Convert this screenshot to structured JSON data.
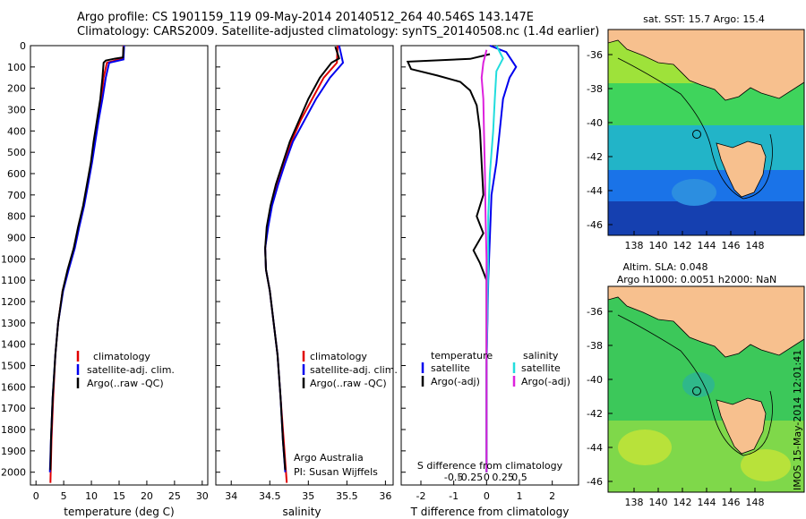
{
  "header": {
    "line1": "Argo profile: CS 1901159_119 09-May-2014 20140512_264 40.546S 143.147E",
    "line2": "Climatology: CARS2009. Satellite-adjusted climatology: synTS_20140508.nc (1.4d earlier)"
  },
  "colors": {
    "climatology": "#e00000",
    "satellite": "#0000ee",
    "argo": "#000000",
    "sat_salinity": "#22dddd",
    "argo_salinity": "#dd22dd",
    "land": "#f7c08e"
  },
  "depth_axis": {
    "ticks": [
      0,
      100,
      200,
      300,
      400,
      500,
      600,
      700,
      800,
      900,
      1000,
      1100,
      1200,
      1300,
      1400,
      1500,
      1600,
      1700,
      1800,
      1900,
      2000
    ]
  },
  "chart_data": [
    {
      "type": "line",
      "id": "temperature",
      "xlabel": "temperature (deg C)",
      "xlim": [
        -1,
        31
      ],
      "ylim": [
        2060,
        0
      ],
      "xticks": [
        0,
        5,
        10,
        15,
        20,
        25,
        30
      ],
      "legend": [
        "climatology",
        "satellite-adj. clim.",
        "Argo(..raw -QC)"
      ],
      "series": [
        {
          "name": "climatology",
          "color": "#e00000",
          "points": [
            [
              15.8,
              0
            ],
            [
              15.7,
              60
            ],
            [
              12.8,
              80
            ],
            [
              12.2,
              150
            ],
            [
              11.8,
              250
            ],
            [
              11.2,
              350
            ],
            [
              10.6,
              450
            ],
            [
              10.0,
              550
            ],
            [
              9.3,
              650
            ],
            [
              8.6,
              750
            ],
            [
              7.7,
              850
            ],
            [
              6.9,
              950
            ],
            [
              5.8,
              1050
            ],
            [
              4.8,
              1150
            ],
            [
              4.0,
              1300
            ],
            [
              3.5,
              1450
            ],
            [
              3.1,
              1650
            ],
            [
              2.8,
              1850
            ],
            [
              2.6,
              2050
            ]
          ]
        },
        {
          "name": "satellite-adj. clim.",
          "color": "#0000ee",
          "points": [
            [
              15.9,
              0
            ],
            [
              15.8,
              65
            ],
            [
              13.2,
              80
            ],
            [
              12.6,
              150
            ],
            [
              12.0,
              250
            ],
            [
              11.3,
              350
            ],
            [
              10.7,
              450
            ],
            [
              10.1,
              550
            ],
            [
              9.4,
              650
            ],
            [
              8.7,
              750
            ],
            [
              7.8,
              850
            ],
            [
              7.0,
              950
            ],
            [
              5.9,
              1050
            ],
            [
              4.9,
              1150
            ],
            [
              4.0,
              1300
            ],
            [
              3.5,
              1450
            ],
            [
              3.0,
              1650
            ],
            [
              2.7,
              1850
            ],
            [
              2.5,
              2000
            ]
          ]
        },
        {
          "name": "Argo(..raw -QC)",
          "color": "#000000",
          "points": [
            [
              15.8,
              5
            ],
            [
              15.7,
              55
            ],
            [
              14.0,
              62
            ],
            [
              12.6,
              70
            ],
            [
              12.2,
              80
            ],
            [
              12.0,
              150
            ],
            [
              11.6,
              250
            ],
            [
              11.0,
              350
            ],
            [
              10.4,
              450
            ],
            [
              9.9,
              550
            ],
            [
              9.2,
              650
            ],
            [
              8.5,
              750
            ],
            [
              7.6,
              850
            ],
            [
              6.8,
              950
            ],
            [
              5.7,
              1050
            ],
            [
              4.8,
              1150
            ],
            [
              4.0,
              1300
            ],
            [
              3.5,
              1450
            ],
            [
              3.0,
              1650
            ],
            [
              2.7,
              1850
            ],
            [
              2.6,
              1990
            ]
          ]
        }
      ]
    },
    {
      "type": "line",
      "id": "salinity",
      "xlabel": "salinity",
      "xlim": [
        33.8,
        36.1
      ],
      "ylim": [
        2060,
        0
      ],
      "xticks": [
        34,
        34.5,
        35,
        35.5,
        36
      ],
      "legend": [
        "climatology",
        "satellite-adj. clim.",
        "Argo(..raw -QC)"
      ],
      "series": [
        {
          "name": "climatology",
          "color": "#e00000",
          "points": [
            [
              35.38,
              0
            ],
            [
              35.37,
              80
            ],
            [
              35.2,
              150
            ],
            [
              35.05,
              250
            ],
            [
              34.9,
              350
            ],
            [
              34.78,
              450
            ],
            [
              34.68,
              550
            ],
            [
              34.6,
              650
            ],
            [
              34.52,
              750
            ],
            [
              34.47,
              850
            ],
            [
              34.44,
              950
            ],
            [
              34.45,
              1050
            ],
            [
              34.5,
              1150
            ],
            [
              34.55,
              1300
            ],
            [
              34.6,
              1450
            ],
            [
              34.64,
              1650
            ],
            [
              34.68,
              1850
            ],
            [
              34.72,
              2050
            ]
          ]
        },
        {
          "name": "satellite-adj. clim.",
          "color": "#0000ee",
          "points": [
            [
              35.4,
              0
            ],
            [
              35.45,
              80
            ],
            [
              35.28,
              150
            ],
            [
              35.1,
              250
            ],
            [
              34.95,
              350
            ],
            [
              34.8,
              450
            ],
            [
              34.7,
              550
            ],
            [
              34.61,
              650
            ],
            [
              34.53,
              750
            ],
            [
              34.48,
              850
            ],
            [
              34.44,
              950
            ],
            [
              34.45,
              1050
            ],
            [
              34.5,
              1150
            ],
            [
              34.55,
              1300
            ],
            [
              34.6,
              1450
            ],
            [
              34.64,
              1650
            ],
            [
              34.67,
              1850
            ],
            [
              34.7,
              2000
            ]
          ]
        },
        {
          "name": "Argo(..raw -QC)",
          "color": "#000000",
          "points": [
            [
              35.35,
              5
            ],
            [
              35.4,
              60
            ],
            [
              35.3,
              80
            ],
            [
              35.15,
              150
            ],
            [
              35.0,
              250
            ],
            [
              34.88,
              350
            ],
            [
              34.76,
              450
            ],
            [
              34.67,
              550
            ],
            [
              34.58,
              650
            ],
            [
              34.51,
              750
            ],
            [
              34.46,
              850
            ],
            [
              34.44,
              950
            ],
            [
              34.45,
              1050
            ],
            [
              34.5,
              1150
            ],
            [
              34.55,
              1300
            ],
            [
              34.6,
              1450
            ],
            [
              34.64,
              1650
            ],
            [
              34.67,
              1850
            ],
            [
              34.7,
              1990
            ]
          ]
        }
      ],
      "annotation": [
        "Argo Australia",
        "PI: Susan Wijffels"
      ]
    },
    {
      "type": "line",
      "id": "difference",
      "xlabel": "T difference from climatology",
      "x2label": "S difference from climatology",
      "xlim": [
        -2.6,
        2.8
      ],
      "ylim": [
        2060,
        0
      ],
      "xticks": [
        -2,
        -1,
        0,
        1,
        2
      ],
      "x2ticks": [
        "-0.5",
        "-0.25",
        "0",
        "0.25",
        "0.5"
      ],
      "legend_titles": [
        "temperature",
        "salinity"
      ],
      "legend": [
        "satellite",
        "Argo(-adj)",
        "satellite",
        "Argo(-adj)"
      ],
      "series": [
        {
          "name": "satellite",
          "color": "#0000ee",
          "points": [
            [
              0.1,
              0
            ],
            [
              0.6,
              30
            ],
            [
              0.9,
              100
            ],
            [
              0.7,
              150
            ],
            [
              0.5,
              250
            ],
            [
              0.4,
              400
            ],
            [
              0.3,
              550
            ],
            [
              0.15,
              700
            ],
            [
              0.1,
              900
            ],
            [
              0.05,
              1100
            ],
            [
              0.0,
              1500
            ],
            [
              0.0,
              2000
            ]
          ]
        },
        {
          "name": "Argo(-adj)",
          "color": "#000000",
          "points": [
            [
              0.1,
              40
            ],
            [
              -0.5,
              62
            ],
            [
              -2.4,
              75
            ],
            [
              -2.3,
              110
            ],
            [
              -1.5,
              140
            ],
            [
              -0.8,
              170
            ],
            [
              -0.5,
              210
            ],
            [
              -0.3,
              280
            ],
            [
              -0.2,
              400
            ],
            [
              -0.15,
              550
            ],
            [
              -0.1,
              700
            ],
            [
              -0.3,
              800
            ],
            [
              -0.1,
              880
            ],
            [
              -0.4,
              960
            ],
            [
              -0.2,
              1020
            ],
            [
              0.0,
              1100
            ],
            [
              0.0,
              1500
            ],
            [
              0.0,
              2000
            ]
          ]
        },
        {
          "name": "salinity satellite",
          "color": "#22dddd",
          "points": [
            [
              0.3,
              0
            ],
            [
              0.5,
              60
            ],
            [
              0.3,
              120
            ],
            [
              0.25,
              250
            ],
            [
              0.2,
              400
            ],
            [
              0.1,
              600
            ],
            [
              0.05,
              800
            ],
            [
              0.05,
              1000
            ],
            [
              0.0,
              1500
            ],
            [
              0.0,
              2000
            ]
          ]
        },
        {
          "name": "salinity Argo(-adj)",
          "color": "#dd22dd",
          "points": [
            [
              0.0,
              20
            ],
            [
              -0.1,
              80
            ],
            [
              -0.15,
              150
            ],
            [
              -0.1,
              250
            ],
            [
              -0.08,
              400
            ],
            [
              -0.05,
              600
            ],
            [
              -0.03,
              800
            ],
            [
              0.0,
              1000
            ],
            [
              0.0,
              1500
            ],
            [
              0.0,
              2000
            ]
          ]
        }
      ]
    }
  ],
  "maps": [
    {
      "title": "sat. SST: 15.7  Argo: 15.4",
      "yticks": [
        -36,
        -38,
        -40,
        -42,
        -44,
        -46
      ],
      "xticks": [
        138,
        140,
        142,
        144,
        146,
        148
      ]
    },
    {
      "title1": "Altim. SLA: 0.048",
      "title2": "Argo h1000: 0.0051 h2000: NaN",
      "yticks": [
        -36,
        -38,
        -40,
        -42,
        -44,
        -46
      ],
      "xticks": [
        138,
        140,
        142,
        144,
        146,
        148
      ]
    }
  ],
  "footer": {
    "imos_stamp": "IMOS 15-May-2014 12:01:41"
  }
}
